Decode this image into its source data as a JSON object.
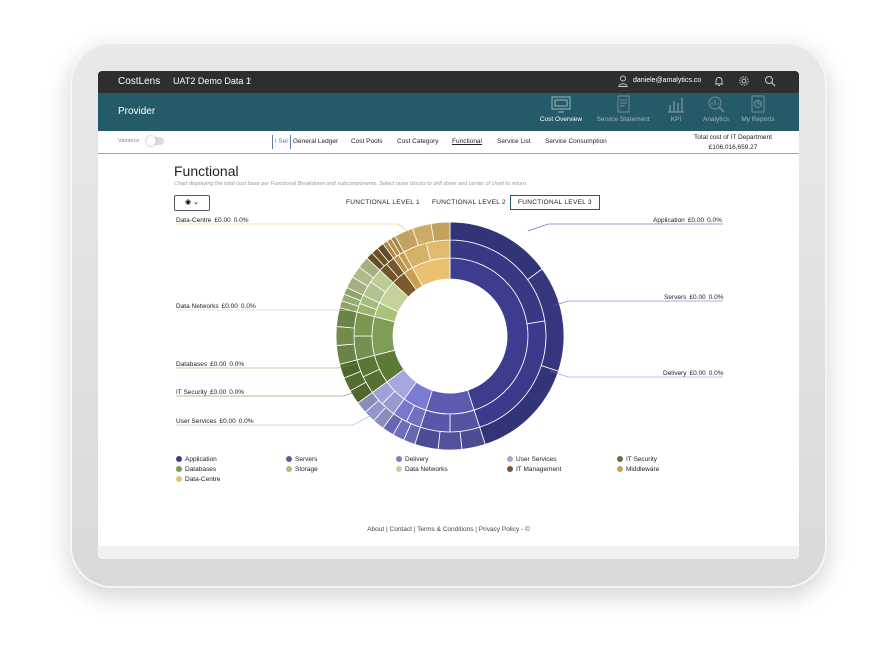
{
  "app": {
    "name": "CostLens",
    "dataset": "UAT2 Demo Data 1",
    "user_email": "daniele@amalytics.co"
  },
  "header": {
    "section_title": "Provider",
    "nav": [
      {
        "label": "Cost Overview",
        "icon": "monitor-icon",
        "active": true
      },
      {
        "label": "Service Statement",
        "icon": "document-icon",
        "active": false
      },
      {
        "label": "KPI",
        "icon": "bar-chart-icon",
        "active": false
      },
      {
        "label": "Analytics",
        "icon": "magnifier-chart-icon",
        "active": false
      },
      {
        "label": "My Reports",
        "icon": "report-icon",
        "active": false
      }
    ]
  },
  "toolbar": {
    "variance_label": "Variance",
    "tab_partial": "l Ser",
    "tabs": [
      {
        "label": "General Ledger",
        "active": false
      },
      {
        "label": "Cost Pools",
        "active": false
      },
      {
        "label": "Cost Category",
        "active": false
      },
      {
        "label": "Functional",
        "active": true
      },
      {
        "label": "Service List",
        "active": false
      },
      {
        "label": "Service Consumption",
        "active": false
      }
    ],
    "total_label": "Total cost of IT Department",
    "total_value": "£106,016,659.27"
  },
  "page": {
    "title": "Functional",
    "subtitle": "Chart displaying the total cost base per Functional Breakdown and subcomponents. Select outer blocks to drill down and center of chart to return.",
    "levels": [
      "FUNCTIONAL LEVEL 1",
      "FUNCTIONAL LEVEL 2",
      "FUNCTIONAL LEVEL 3"
    ],
    "active_level": "FUNCTIONAL LEVEL 3"
  },
  "chart_data": {
    "type": "sunburst",
    "segments": [
      {
        "name": "Application",
        "value": "£0.00",
        "pct": "0.0%",
        "share": 0.45,
        "color": "#3d3d8f"
      },
      {
        "name": "Servers",
        "value": "£0.00",
        "pct": "0.0%",
        "share": 0.1,
        "color": "#5b5bb0"
      },
      {
        "name": "Delivery",
        "value": "£0.00",
        "pct": "0.0%",
        "share": 0.05,
        "color": "#7b7bd4"
      },
      {
        "name": "User Services",
        "value": "£0.00",
        "pct": "0.0%",
        "share": 0.05,
        "color": "#a6a6e0"
      },
      {
        "name": "IT Security",
        "value": "£0.00",
        "pct": "0.0%",
        "share": 0.06,
        "color": "#5c7a36"
      },
      {
        "name": "Databases",
        "value": "£0.00",
        "pct": "0.0%",
        "share": 0.08,
        "color": "#7e9c55"
      },
      {
        "name": "Storage",
        "value": "£0.00",
        "pct": "0.0%",
        "share": 0.03,
        "color": "#a9c47a"
      },
      {
        "name": "Data Networks",
        "value": "£0.00",
        "pct": "0.0%",
        "share": 0.05,
        "color": "#c2d29a"
      },
      {
        "name": "IT Management",
        "value": "£0.00",
        "pct": "0.0%",
        "share": 0.03,
        "color": "#7a5a2a"
      },
      {
        "name": "Middleware",
        "value": "£0.00",
        "pct": "0.0%",
        "share": 0.02,
        "color": "#c8a050"
      },
      {
        "name": "Data-Centre",
        "value": "£0.00",
        "pct": "0.0%",
        "share": 0.08,
        "color": "#e8c070"
      }
    ],
    "callouts_left": [
      "Data-Centre",
      "Data Networks",
      "Databases",
      "IT Security",
      "User Services"
    ],
    "callouts_right": [
      "Application",
      "Servers",
      "Delivery"
    ]
  },
  "legend": [
    "Application",
    "Servers",
    "Delivery",
    "User Services",
    "IT Security",
    "Databases",
    "Storage",
    "Data Networks",
    "IT Management",
    "Middleware",
    "Data-Centre"
  ],
  "footer": {
    "text": "About  |  Contact  |  Terms & Conditions  |  Privacy Policy - ©"
  }
}
